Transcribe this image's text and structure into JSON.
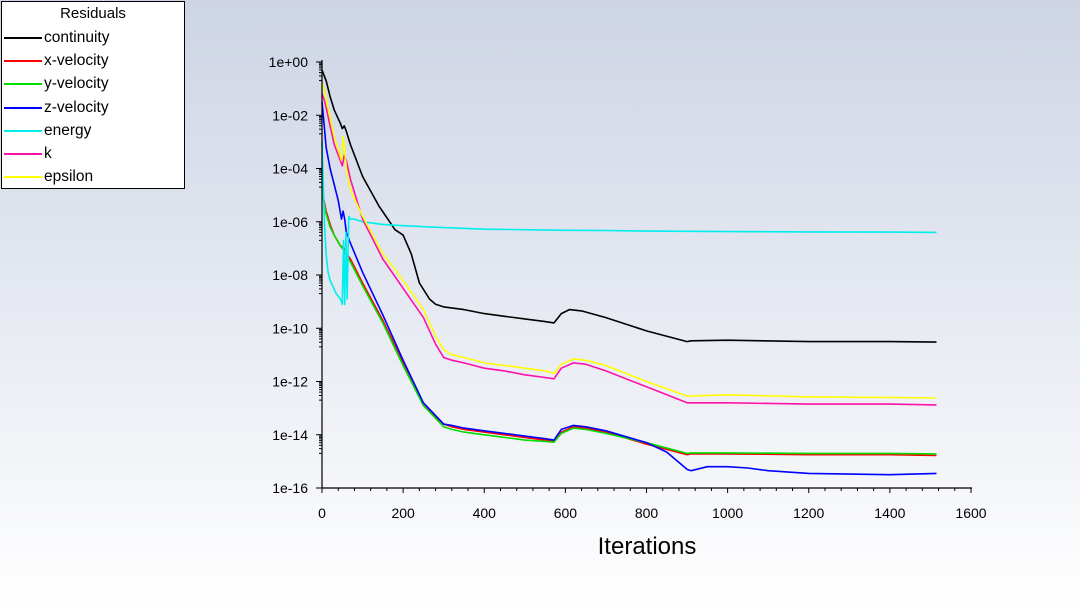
{
  "legend": {
    "title": "Residuals",
    "entries": [
      {
        "name": "continuity",
        "color": "#000000"
      },
      {
        "name": "x-velocity",
        "color": "#ff0000"
      },
      {
        "name": "y-velocity",
        "color": "#00dd00"
      },
      {
        "name": "z-velocity",
        "color": "#0000ff"
      },
      {
        "name": "energy",
        "color": "#00eeee"
      },
      {
        "name": "k",
        "color": "#ff11aa"
      },
      {
        "name": "epsilon",
        "color": "#ffff00"
      }
    ]
  },
  "chart_data": {
    "type": "line",
    "title": "",
    "xlabel": "Iterations",
    "ylabel": "",
    "xlim": [
      0,
      1600
    ],
    "ylim_exp": [
      -16,
      0
    ],
    "yscale": "log",
    "grid": false,
    "legend_position": "top-left",
    "x_ticks": [
      "0",
      "200",
      "400",
      "600",
      "800",
      "1000",
      "1200",
      "1400",
      "1600"
    ],
    "y_ticks": [
      "1e+00",
      "1e-02",
      "1e-04",
      "1e-06",
      "1e-08",
      "1e-10",
      "1e-12",
      "1e-14",
      "1e-16"
    ],
    "series": [
      {
        "name": "continuity",
        "color": "#000000",
        "x": [
          0,
          5,
          10,
          20,
          30,
          45,
          50,
          55,
          60,
          70,
          100,
          140,
          180,
          200,
          220,
          240,
          265,
          280,
          300,
          350,
          400,
          450,
          500,
          550,
          572,
          590,
          610,
          640,
          700,
          800,
          900,
          910,
          1000,
          1200,
          1400,
          1515
        ],
        "y": [
          -0.3,
          -0.5,
          -0.7,
          -1.3,
          -1.8,
          -2.3,
          -2.5,
          -2.4,
          -2.6,
          -3.1,
          -4.3,
          -5.4,
          -6.3,
          -6.5,
          -7.2,
          -8.3,
          -8.9,
          -9.1,
          -9.2,
          -9.3,
          -9.45,
          -9.55,
          -9.65,
          -9.75,
          -9.8,
          -9.45,
          -9.3,
          -9.35,
          -9.6,
          -10.1,
          -10.5,
          -10.47,
          -10.45,
          -10.5,
          -10.5,
          -10.52
        ]
      },
      {
        "name": "x-velocity",
        "color": "#ff0000",
        "x": [
          0,
          5,
          10,
          20,
          30,
          45,
          55,
          60,
          70,
          100,
          150,
          200,
          250,
          300,
          320,
          350,
          400,
          450,
          500,
          550,
          572,
          590,
          620,
          650,
          700,
          800,
          900,
          910,
          1000,
          1200,
          1400,
          1515
        ],
        "y": [
          -4.5,
          -5.2,
          -5.6,
          -6.1,
          -6.5,
          -6.9,
          -7.0,
          -7.2,
          -7.4,
          -8.3,
          -9.7,
          -11.3,
          -12.9,
          -13.6,
          -13.7,
          -13.8,
          -13.9,
          -14.0,
          -14.1,
          -14.2,
          -14.25,
          -13.9,
          -13.7,
          -13.75,
          -13.9,
          -14.35,
          -14.75,
          -14.72,
          -14.72,
          -14.75,
          -14.75,
          -14.78
        ]
      },
      {
        "name": "y-velocity",
        "color": "#00dd00",
        "x": [
          0,
          5,
          10,
          20,
          30,
          45,
          55,
          60,
          70,
          100,
          150,
          200,
          250,
          300,
          320,
          350,
          400,
          450,
          500,
          550,
          572,
          590,
          620,
          650,
          700,
          800,
          900,
          910,
          1000,
          1200,
          1400,
          1515
        ],
        "y": [
          -4.8,
          -5.3,
          -5.7,
          -6.2,
          -6.5,
          -6.9,
          -7.1,
          -7.3,
          -7.5,
          -8.4,
          -9.8,
          -11.4,
          -12.9,
          -13.7,
          -13.8,
          -13.9,
          -14.0,
          -14.1,
          -14.2,
          -14.25,
          -14.28,
          -13.95,
          -13.75,
          -13.8,
          -13.95,
          -14.3,
          -14.7,
          -14.68,
          -14.68,
          -14.7,
          -14.7,
          -14.72
        ]
      },
      {
        "name": "z-velocity",
        "color": "#0000ff",
        "x": [
          0,
          5,
          10,
          20,
          30,
          40,
          48,
          52,
          56,
          60,
          70,
          100,
          150,
          200,
          250,
          300,
          320,
          350,
          400,
          450,
          500,
          550,
          572,
          590,
          620,
          650,
          700,
          800,
          850,
          900,
          910,
          950,
          1000,
          1050,
          1100,
          1200,
          1400,
          1515
        ],
        "y": [
          -1.5,
          -2.3,
          -3.2,
          -4.0,
          -4.6,
          -5.2,
          -5.9,
          -5.6,
          -5.9,
          -6.4,
          -6.8,
          -7.9,
          -9.5,
          -11.2,
          -12.8,
          -13.6,
          -13.65,
          -13.75,
          -13.85,
          -13.95,
          -14.05,
          -14.15,
          -14.2,
          -13.8,
          -13.65,
          -13.7,
          -13.85,
          -14.3,
          -14.65,
          -15.3,
          -15.35,
          -15.2,
          -15.2,
          -15.25,
          -15.35,
          -15.45,
          -15.5,
          -15.45
        ]
      },
      {
        "name": "energy",
        "color": "#00eeee",
        "x": [
          0,
          3,
          6,
          10,
          15,
          20,
          35,
          45,
          50,
          53,
          56,
          59,
          62,
          66,
          70,
          80,
          100,
          150,
          200,
          300,
          400,
          500,
          600,
          700,
          800,
          900,
          1000,
          1200,
          1400,
          1515
        ],
        "y": [
          -3.0,
          -4.5,
          -6.0,
          -7.2,
          -7.9,
          -8.2,
          -8.7,
          -8.9,
          -9.1,
          -6.7,
          -9.1,
          -6.4,
          -8.9,
          -5.8,
          -5.9,
          -5.9,
          -6.0,
          -6.1,
          -6.15,
          -6.22,
          -6.28,
          -6.3,
          -6.32,
          -6.33,
          -6.35,
          -6.36,
          -6.37,
          -6.38,
          -6.39,
          -6.4
        ]
      },
      {
        "name": "k",
        "color": "#ff11aa",
        "x": [
          0,
          5,
          10,
          20,
          30,
          45,
          50,
          55,
          60,
          70,
          100,
          150,
          200,
          250,
          280,
          300,
          320,
          350,
          400,
          450,
          500,
          550,
          572,
          590,
          620,
          650,
          700,
          800,
          900,
          910,
          1000,
          1200,
          1400,
          1515
        ],
        "y": [
          -1.2,
          -1.4,
          -1.7,
          -2.4,
          -3.1,
          -3.7,
          -3.9,
          -3.5,
          -3.7,
          -4.4,
          -5.9,
          -7.4,
          -8.5,
          -9.6,
          -10.6,
          -11.1,
          -11.2,
          -11.3,
          -11.5,
          -11.6,
          -11.75,
          -11.85,
          -11.9,
          -11.5,
          -11.3,
          -11.35,
          -11.6,
          -12.2,
          -12.8,
          -12.8,
          -12.8,
          -12.85,
          -12.85,
          -12.88
        ]
      },
      {
        "name": "epsilon",
        "color": "#ffff00",
        "x": [
          0,
          5,
          10,
          20,
          30,
          40,
          48,
          52,
          56,
          60,
          70,
          100,
          150,
          200,
          250,
          280,
          300,
          320,
          350,
          400,
          450,
          500,
          550,
          572,
          590,
          620,
          650,
          700,
          800,
          900,
          910,
          1000,
          1200,
          1400,
          1515
        ],
        "y": [
          -0.8,
          -1.0,
          -1.4,
          -2.1,
          -2.8,
          -3.3,
          -3.7,
          -2.8,
          -3.3,
          -4.0,
          -4.8,
          -5.8,
          -7.2,
          -8.2,
          -9.3,
          -10.3,
          -10.8,
          -11.0,
          -11.1,
          -11.3,
          -11.4,
          -11.5,
          -11.6,
          -11.7,
          -11.35,
          -11.15,
          -11.2,
          -11.4,
          -12.0,
          -12.55,
          -12.55,
          -12.5,
          -12.58,
          -12.6,
          -12.62
        ]
      }
    ]
  }
}
